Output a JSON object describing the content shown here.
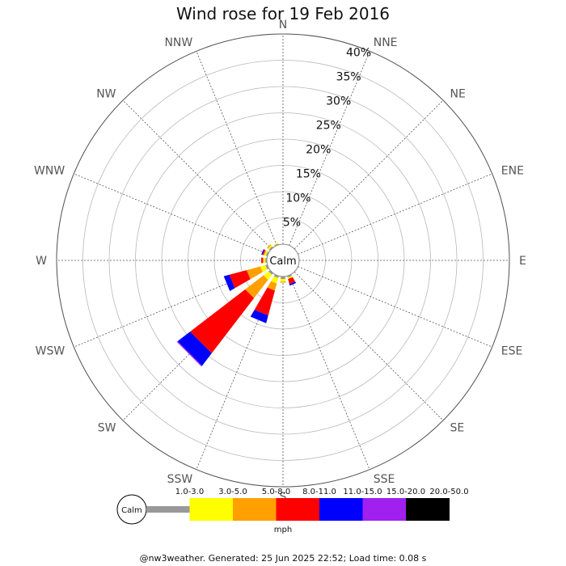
{
  "chart_data": {
    "type": "wind-rose",
    "title": "Wind rose for 19 Feb 2016",
    "directions": [
      "N",
      "NNE",
      "NE",
      "ENE",
      "E",
      "ESE",
      "SE",
      "SSE",
      "S",
      "SSW",
      "SW",
      "WSW",
      "W",
      "WNW",
      "NW",
      "NNW"
    ],
    "ring_labels": [
      "5%",
      "10%",
      "15%",
      "20%",
      "25%",
      "30%",
      "35%",
      "40%"
    ],
    "rings": [
      5,
      10,
      15,
      20,
      25,
      30,
      35,
      40
    ],
    "rlim": [
      0,
      40
    ],
    "calm_label": "Calm",
    "speed_unit": "mph",
    "speed_bins": [
      "1.0-3.0",
      "3.0-5.0",
      "5.0-8.0",
      "8.0-11.0",
      "11.0-15.0",
      "15.0-20.0",
      "20.0-50.0"
    ],
    "bin_colors": [
      "#999999",
      "#ffff00",
      "#ffa000",
      "#ff0000",
      "#0000ff",
      "#a020f0",
      "#000000"
    ],
    "calm_color": "#ffffff",
    "grid": true,
    "legend_position": "bottom",
    "series_cumulative_percent": {
      "N": [
        0,
        0,
        0,
        0,
        0,
        0,
        0
      ],
      "NNE": [
        0,
        0,
        0,
        0,
        0,
        0,
        0
      ],
      "NE": [
        0,
        0,
        0,
        0,
        0,
        0,
        0
      ],
      "ENE": [
        0,
        0,
        0,
        0,
        0,
        0,
        0
      ],
      "E": [
        0,
        0,
        0,
        0,
        0,
        0,
        0
      ],
      "ESE": [
        0,
        0,
        0,
        0,
        0,
        0,
        0
      ],
      "SE": [
        0,
        0,
        0,
        0,
        0,
        0,
        0
      ],
      "SSE": [
        0.3,
        0.6,
        0.6,
        1.6,
        1.9,
        1.9,
        1.9
      ],
      "S": [
        0.5,
        1.0,
        1.2,
        1.2,
        1.2,
        1.2,
        1.2
      ],
      "SSW": [
        0.4,
        1.5,
        2.9,
        7.8,
        9.3,
        9.3,
        9.3
      ],
      "SW": [
        0.4,
        1.6,
        6.0,
        19.2,
        22.2,
        22.4,
        22.4
      ],
      "WSW": [
        0.4,
        1.4,
        4.1,
        7.5,
        8.6,
        8.6,
        8.6
      ],
      "W": [
        0.3,
        0.6,
        0.8,
        1.1,
        1.1,
        1.1,
        1.1
      ],
      "WNW": [
        0.3,
        0.6,
        0.8,
        1.0,
        1.2,
        1.2,
        1.2
      ],
      "NW": [
        0.3,
        0.6,
        0.8,
        0.8,
        0.8,
        0.8,
        0.8
      ],
      "NNW": [
        0.2,
        0.4,
        0.4,
        0.4,
        0.4,
        0.4,
        0.4
      ]
    }
  },
  "footer": "@nw3weather. Generated: 25 Jun 2025 22:52; Load time: 0.08 s"
}
